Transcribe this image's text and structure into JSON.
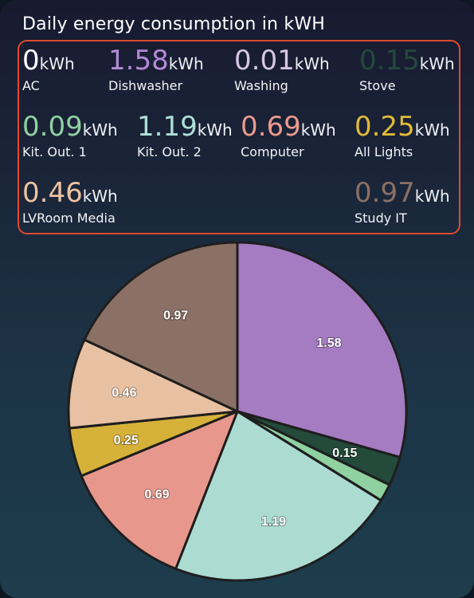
{
  "title": "Daily energy consumption in kWH",
  "unit": "kWh",
  "stats": [
    {
      "value": "0",
      "label": "AC",
      "color": "#ffffff"
    },
    {
      "value": "1.58",
      "label": "Dishwasher",
      "color": "#b38ad6"
    },
    {
      "value": "0.01",
      "label": "Washing",
      "color": "#d7c6e6"
    },
    {
      "value": "0.15",
      "label": "Stove",
      "color": "#244a3c"
    },
    {
      "value": "0.09",
      "label": "Kit. Out. 1",
      "color": "#8fd1a1"
    },
    {
      "value": "1.19",
      "label": "Kit. Out. 2",
      "color": "#aee0d6"
    },
    {
      "value": "0.69",
      "label": "Computer",
      "color": "#ec9a8d"
    },
    {
      "value": "0.25",
      "label": "All Lights",
      "color": "#e0bb3a"
    },
    {
      "value": "0.46",
      "label": "LVRoom Media",
      "color": "#edc3a2"
    },
    {
      "value": "0.97",
      "label": "Study IT",
      "color": "#8b7064"
    }
  ],
  "chart_data": {
    "type": "pie",
    "categories": [
      "Dishwasher",
      "Stove",
      "Kit. Out. 1",
      "Kit. Out. 2",
      "Computer",
      "All Lights",
      "LVRoom Media",
      "Study IT"
    ],
    "values": [
      1.58,
      0.15,
      0.09,
      1.19,
      0.69,
      0.25,
      0.46,
      0.97
    ],
    "colors": [
      "#a57cc2",
      "#234a3b",
      "#8fd1a1",
      "#acdbd2",
      "#e8978c",
      "#d6b13a",
      "#e8c1a2",
      "#8a7065"
    ],
    "data_labels": [
      "1.58",
      "0.15",
      "",
      "1.19",
      "0.69",
      "0.25",
      "0.46",
      "0.97"
    ]
  }
}
